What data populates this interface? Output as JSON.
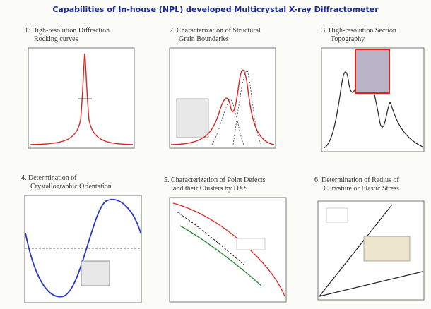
{
  "title": "Capabilities of In-house (NPL) developed Multicrystal X-ray Diffractometer",
  "panels": [
    {
      "heading": [
        "1. High-resolution Diffraction",
        "Rocking curves"
      ]
    },
    {
      "heading": [
        "2. Characterization of Structural",
        "Grain Boundaries"
      ]
    },
    {
      "heading": [
        "3. High-resolution Section",
        "Topography"
      ]
    },
    {
      "heading": [
        "4. Determination of",
        "Crystallographic Orientation"
      ]
    },
    {
      "heading": [
        "5. Characterization of Point Defects",
        "and their Clusters by DXS"
      ]
    },
    {
      "heading": [
        "6. Determination of Radius of",
        "Curvature or Elastic Stress"
      ]
    }
  ]
}
